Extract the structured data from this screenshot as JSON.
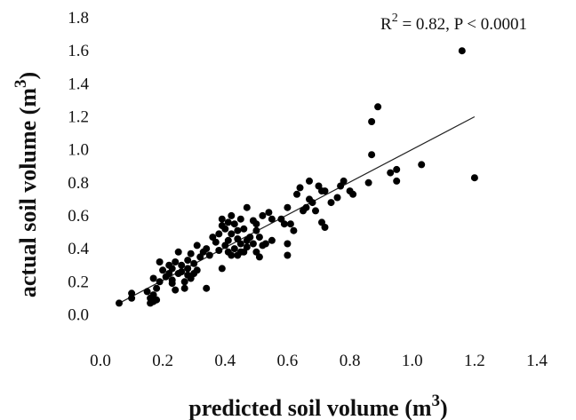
{
  "chart_data": {
    "type": "scatter",
    "title": "",
    "xlabel": {
      "text": "predicted soil volume (m",
      "sup": "3",
      "close": ")"
    },
    "ylabel": {
      "text": "actual soil volume (m",
      "sup": "3",
      "close": ")"
    },
    "xlim": [
      0.0,
      1.4
    ],
    "ylim": [
      -0.1,
      1.8
    ],
    "xticks": [
      "0.0",
      "0.2",
      "0.4",
      "0.6",
      "0.8",
      "1.0",
      "1.2",
      "1.4"
    ],
    "yticks": [
      "0.0",
      "0.2",
      "0.4",
      "0.6",
      "0.8",
      "1.0",
      "1.2",
      "1.4",
      "1.6",
      "1.8"
    ],
    "grid": false,
    "annotation": {
      "prefix": "R",
      "sup": "2",
      "suffix": " = 0.82, P < 0.0001"
    },
    "trendline": {
      "x": [
        0.06,
        1.2
      ],
      "y": [
        0.07,
        1.2
      ]
    },
    "points": [
      [
        0.06,
        0.07
      ],
      [
        0.1,
        0.1
      ],
      [
        0.1,
        0.13
      ],
      [
        0.15,
        0.14
      ],
      [
        0.16,
        0.07
      ],
      [
        0.16,
        0.1
      ],
      [
        0.17,
        0.08
      ],
      [
        0.17,
        0.12
      ],
      [
        0.17,
        0.22
      ],
      [
        0.18,
        0.09
      ],
      [
        0.18,
        0.16
      ],
      [
        0.19,
        0.2
      ],
      [
        0.19,
        0.32
      ],
      [
        0.2,
        0.27
      ],
      [
        0.21,
        0.23
      ],
      [
        0.22,
        0.3
      ],
      [
        0.22,
        0.25
      ],
      [
        0.23,
        0.21
      ],
      [
        0.23,
        0.19
      ],
      [
        0.23,
        0.28
      ],
      [
        0.24,
        0.15
      ],
      [
        0.24,
        0.32
      ],
      [
        0.25,
        0.25
      ],
      [
        0.25,
        0.38
      ],
      [
        0.26,
        0.3
      ],
      [
        0.26,
        0.26
      ],
      [
        0.27,
        0.2
      ],
      [
        0.27,
        0.16
      ],
      [
        0.28,
        0.33
      ],
      [
        0.28,
        0.28
      ],
      [
        0.28,
        0.24
      ],
      [
        0.29,
        0.37
      ],
      [
        0.29,
        0.22
      ],
      [
        0.3,
        0.25
      ],
      [
        0.3,
        0.31
      ],
      [
        0.31,
        0.27
      ],
      [
        0.31,
        0.42
      ],
      [
        0.32,
        0.35
      ],
      [
        0.33,
        0.38
      ],
      [
        0.34,
        0.16
      ],
      [
        0.34,
        0.4
      ],
      [
        0.35,
        0.36
      ],
      [
        0.36,
        0.47
      ],
      [
        0.37,
        0.44
      ],
      [
        0.38,
        0.49
      ],
      [
        0.38,
        0.39
      ],
      [
        0.39,
        0.58
      ],
      [
        0.39,
        0.54
      ],
      [
        0.39,
        0.28
      ],
      [
        0.4,
        0.52
      ],
      [
        0.4,
        0.42
      ],
      [
        0.41,
        0.38
      ],
      [
        0.41,
        0.45
      ],
      [
        0.41,
        0.56
      ],
      [
        0.42,
        0.36
      ],
      [
        0.42,
        0.49
      ],
      [
        0.42,
        0.6
      ],
      [
        0.43,
        0.55
      ],
      [
        0.43,
        0.4
      ],
      [
        0.44,
        0.36
      ],
      [
        0.44,
        0.46
      ],
      [
        0.44,
        0.51
      ],
      [
        0.45,
        0.43
      ],
      [
        0.45,
        0.58
      ],
      [
        0.45,
        0.38
      ],
      [
        0.46,
        0.52
      ],
      [
        0.46,
        0.38
      ],
      [
        0.47,
        0.45
      ],
      [
        0.47,
        0.65
      ],
      [
        0.47,
        0.41
      ],
      [
        0.48,
        0.47
      ],
      [
        0.49,
        0.57
      ],
      [
        0.49,
        0.43
      ],
      [
        0.5,
        0.55
      ],
      [
        0.5,
        0.51
      ],
      [
        0.5,
        0.38
      ],
      [
        0.51,
        0.47
      ],
      [
        0.51,
        0.35
      ],
      [
        0.52,
        0.42
      ],
      [
        0.52,
        0.6
      ],
      [
        0.53,
        0.43
      ],
      [
        0.54,
        0.62
      ],
      [
        0.55,
        0.58
      ],
      [
        0.55,
        0.45
      ],
      [
        0.58,
        0.58
      ],
      [
        0.59,
        0.55
      ],
      [
        0.6,
        0.65
      ],
      [
        0.6,
        0.43
      ],
      [
        0.6,
        0.36
      ],
      [
        0.61,
        0.55
      ],
      [
        0.62,
        0.51
      ],
      [
        0.63,
        0.73
      ],
      [
        0.64,
        0.77
      ],
      [
        0.65,
        0.63
      ],
      [
        0.66,
        0.65
      ],
      [
        0.67,
        0.81
      ],
      [
        0.67,
        0.7
      ],
      [
        0.68,
        0.68
      ],
      [
        0.69,
        0.63
      ],
      [
        0.7,
        0.78
      ],
      [
        0.71,
        0.75
      ],
      [
        0.71,
        0.56
      ],
      [
        0.72,
        0.53
      ],
      [
        0.72,
        0.75
      ],
      [
        0.74,
        0.68
      ],
      [
        0.76,
        0.71
      ],
      [
        0.77,
        0.78
      ],
      [
        0.78,
        0.81
      ],
      [
        0.8,
        0.75
      ],
      [
        0.81,
        0.73
      ],
      [
        0.86,
        0.8
      ],
      [
        0.87,
        1.17
      ],
      [
        0.87,
        0.97
      ],
      [
        0.89,
        1.26
      ],
      [
        0.93,
        0.86
      ],
      [
        0.95,
        0.88
      ],
      [
        0.95,
        0.81
      ],
      [
        1.03,
        0.91
      ],
      [
        1.16,
        1.6
      ],
      [
        1.2,
        0.83
      ]
    ]
  }
}
